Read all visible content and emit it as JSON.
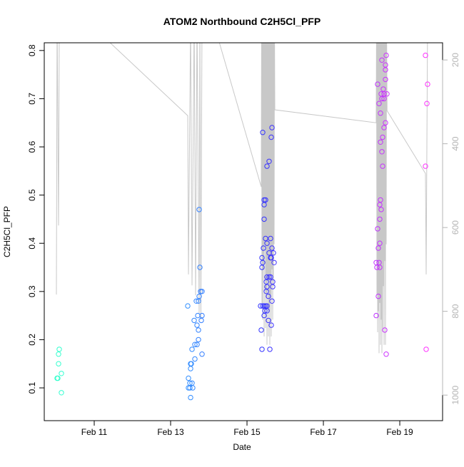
{
  "chart_data": {
    "type": "scatter",
    "title": "ATOM2 Northbound C2H5Cl_PFP",
    "xlabel": "Date",
    "ylabel": "C2H5Cl_PFP",
    "xlim": [
      "Feb 9 16:36",
      "Feb 20 02:54"
    ],
    "ylim": [
      0.032,
      0.816
    ],
    "y2lim": [
      1061,
      159
    ],
    "y2_reversed": true,
    "grid": false,
    "x_ticks": [
      {
        "label": "Feb 11",
        "date": "Feb 11 00:00"
      },
      {
        "label": "Feb 13",
        "date": "Feb 13 00:00"
      },
      {
        "label": "Feb 15",
        "date": "Feb 15 00:00"
      },
      {
        "label": "Feb 17",
        "date": "Feb 17 00:00"
      },
      {
        "label": "Feb 19",
        "date": "Feb 19 00:00"
      }
    ],
    "y_ticks": [
      "0.1",
      "0.2",
      "0.3",
      "0.4",
      "0.5",
      "0.6",
      "0.7",
      "0.8"
    ],
    "y2_ticks": [
      "200",
      "400",
      "600",
      "800",
      "1000"
    ],
    "colors": {
      "points_start": "#33ffcc",
      "points_end": "#ff33ff",
      "line": "#c8c8c8",
      "y2_axis": "#b4b4b4"
    },
    "point_color_scale": "time, cyan to magenta",
    "points": [
      [
        "Feb 10 02:01",
        0.18
      ],
      [
        "Feb 10 01:34",
        0.17
      ],
      [
        "Feb 10 01:34",
        0.15
      ],
      [
        "Feb 10 03:22",
        0.13
      ],
      [
        "Feb 10 00:40",
        0.12
      ],
      [
        "Feb 10 01:07",
        0.12
      ],
      [
        "Feb 10 03:22",
        0.09
      ],
      [
        "Feb 13 10:46",
        0.27
      ],
      [
        "Feb 13 17:57",
        0.47
      ],
      [
        "Feb 13 18:24",
        0.35
      ],
      [
        "Feb 13 18:51",
        0.3
      ],
      [
        "Feb 13 19:45",
        0.3
      ],
      [
        "Feb 13 17:57",
        0.29
      ],
      [
        "Feb 13 16:09",
        0.28
      ],
      [
        "Feb 13 17:30",
        0.28
      ],
      [
        "Feb 13 17:03",
        0.25
      ],
      [
        "Feb 13 19:45",
        0.25
      ],
      [
        "Feb 13 14:48",
        0.24
      ],
      [
        "Feb 13 19:18",
        0.24
      ],
      [
        "Feb 13 16:36",
        0.23
      ],
      [
        "Feb 13 17:30",
        0.22
      ],
      [
        "Feb 13 17:30",
        0.2
      ],
      [
        "Feb 13 15:15",
        0.19
      ],
      [
        "Feb 13 16:36",
        0.19
      ],
      [
        "Feb 13 13:28",
        0.18
      ],
      [
        "Feb 13 19:45",
        0.17
      ],
      [
        "Feb 13 15:15",
        0.16
      ],
      [
        "Feb 13 12:34",
        0.15
      ],
      [
        "Feb 13 13:01",
        0.15
      ],
      [
        "Feb 13 12:34",
        0.14
      ],
      [
        "Feb 13 11:13",
        0.12
      ],
      [
        "Feb 13 12:07",
        0.11
      ],
      [
        "Feb 13 13:28",
        0.11
      ],
      [
        "Feb 13 11:13",
        0.1
      ],
      [
        "Feb 13 12:07",
        0.1
      ],
      [
        "Feb 13 13:55",
        0.1
      ],
      [
        "Feb 13 12:34",
        0.08
      ],
      [
        "Feb 15 09:52",
        0.63
      ],
      [
        "Feb 15 15:42",
        0.64
      ],
      [
        "Feb 15 15:15",
        0.62
      ],
      [
        "Feb 15 13:55",
        0.57
      ],
      [
        "Feb 15 12:34",
        0.56
      ],
      [
        "Feb 15 10:46",
        0.49
      ],
      [
        "Feb 15 11:40",
        0.49
      ],
      [
        "Feb 15 10:46",
        0.48
      ],
      [
        "Feb 15 10:46",
        0.45
      ],
      [
        "Feb 15 11:40",
        0.41
      ],
      [
        "Feb 15 14:48",
        0.41
      ],
      [
        "Feb 15 12:34",
        0.4
      ],
      [
        "Feb 15 10:19",
        0.39
      ],
      [
        "Feb 15 15:42",
        0.39
      ],
      [
        "Feb 15 13:55",
        0.38
      ],
      [
        "Feb 15 16:36",
        0.38
      ],
      [
        "Feb 15 09:25",
        0.37
      ],
      [
        "Feb 15 14:48",
        0.37
      ],
      [
        "Feb 15 15:15",
        0.37
      ],
      [
        "Feb 15 09:52",
        0.36
      ],
      [
        "Feb 15 17:03",
        0.36
      ],
      [
        "Feb 15 09:25",
        0.35
      ],
      [
        "Feb 15 12:34",
        0.33
      ],
      [
        "Feb 15 13:55",
        0.33
      ],
      [
        "Feb 15 14:48",
        0.33
      ],
      [
        "Feb 15 12:07",
        0.32
      ],
      [
        "Feb 15 16:09",
        0.32
      ],
      [
        "Feb 15 12:34",
        0.31
      ],
      [
        "Feb 15 16:09",
        0.31
      ],
      [
        "Feb 15 12:07",
        0.3
      ],
      [
        "Feb 15 13:28",
        0.29
      ],
      [
        "Feb 15 15:42",
        0.28
      ],
      [
        "Feb 15 08:31",
        0.27
      ],
      [
        "Feb 15 09:52",
        0.27
      ],
      [
        "Feb 15 10:46",
        0.27
      ],
      [
        "Feb 15 11:40",
        0.27
      ],
      [
        "Feb 15 12:34",
        0.27
      ],
      [
        "Feb 15 11:13",
        0.26
      ],
      [
        "Feb 15 12:34",
        0.26
      ],
      [
        "Feb 15 10:46",
        0.25
      ],
      [
        "Feb 15 13:28",
        0.24
      ],
      [
        "Feb 15 15:15",
        0.23
      ],
      [
        "Feb 15 08:58",
        0.22
      ],
      [
        "Feb 15 09:25",
        0.18
      ],
      [
        "Feb 15 14:21",
        0.18
      ],
      [
        "Feb 18 15:29",
        0.79
      ],
      [
        "Feb 18 12:47",
        0.78
      ],
      [
        "Feb 18 15:02",
        0.77
      ],
      [
        "Feb 18 15:02",
        0.76
      ],
      [
        "Feb 18 15:02",
        0.74
      ],
      [
        "Feb 18 10:06",
        0.73
      ],
      [
        "Feb 18 13:41",
        0.72
      ],
      [
        "Feb 18 12:20",
        0.71
      ],
      [
        "Feb 18 14:08",
        0.71
      ],
      [
        "Feb 18 15:56",
        0.71
      ],
      [
        "Feb 18 12:47",
        0.7
      ],
      [
        "Feb 18 14:08",
        0.7
      ],
      [
        "Feb 18 11:00",
        0.69
      ],
      [
        "Feb 18 11:53",
        0.67
      ],
      [
        "Feb 18 15:02",
        0.65
      ],
      [
        "Feb 18 14:08",
        0.64
      ],
      [
        "Feb 18 13:14",
        0.62
      ],
      [
        "Feb 18 11:53",
        0.61
      ],
      [
        "Feb 18 12:47",
        0.59
      ],
      [
        "Feb 18 13:14",
        0.56
      ],
      [
        "Feb 18 11:53",
        0.49
      ],
      [
        "Feb 18 11:26",
        0.48
      ],
      [
        "Feb 18 12:20",
        0.47
      ],
      [
        "Feb 18 11:26",
        0.45
      ],
      [
        "Feb 18 10:06",
        0.43
      ],
      [
        "Feb 18 11:26",
        0.4
      ],
      [
        "Feb 18 10:33",
        0.39
      ],
      [
        "Feb 18 09:12",
        0.36
      ],
      [
        "Feb 18 11:00",
        0.36
      ],
      [
        "Feb 18 09:39",
        0.35
      ],
      [
        "Feb 18 11:26",
        0.35
      ],
      [
        "Feb 18 10:33",
        0.29
      ],
      [
        "Feb 18 09:12",
        0.25
      ],
      [
        "Feb 18 14:35",
        0.22
      ],
      [
        "Feb 18 15:29",
        0.17
      ],
      [
        "Feb 19 16:09",
        0.79
      ],
      [
        "Feb 19 17:30",
        0.73
      ],
      [
        "Feb 19 17:03",
        0.69
      ],
      [
        "Feb 19 16:09",
        0.56
      ],
      [
        "Feb 19 16:36",
        0.18
      ]
    ],
    "pressure_line": [
      [
        "Feb 10 00:13",
        760
      ],
      [
        "Feb 10 00:40",
        100
      ],
      [
        "Feb 10 01:34",
        595
      ],
      [
        "Feb 10 02:01",
        150
      ],
      [
        "Feb 10 03:22",
        100
      ],
      [
        "Feb 11 09:25",
        157
      ],
      [
        "Feb 13 10:46",
        333
      ],
      [
        "Feb 13 11:13",
        712
      ],
      [
        "Feb 13 12:34",
        100
      ],
      [
        "Feb 13 13:28",
        738
      ],
      [
        "Feb 13 14:48",
        100
      ],
      [
        "Feb 13 15:42",
        762
      ],
      [
        "Feb 13 16:36",
        100
      ],
      [
        "Feb 13 17:57",
        806
      ],
      [
        "Feb 13 18:24",
        100
      ],
      [
        "Feb 13 19:00",
        820
      ],
      [
        "Feb 13 19:45",
        100
      ],
      [
        "Feb 14 06:30",
        157
      ],
      [
        "Feb 15 08:58",
        503
      ],
      [
        "Feb 15 09:10",
        100
      ],
      [
        "Feb 15 09:25",
        780
      ],
      [
        "Feb 15 09:40",
        100
      ],
      [
        "Feb 15 09:52",
        820
      ],
      [
        "Feb 15 10:05",
        100
      ],
      [
        "Feb 15 10:19",
        700
      ],
      [
        "Feb 15 10:30",
        100
      ],
      [
        "Feb 15 10:46",
        860
      ],
      [
        "Feb 15 11:00",
        100
      ],
      [
        "Feb 15 11:13",
        640
      ],
      [
        "Feb 15 11:26",
        100
      ],
      [
        "Feb 15 11:40",
        840
      ],
      [
        "Feb 15 11:53",
        100
      ],
      [
        "Feb 15 12:07",
        760
      ],
      [
        "Feb 15 12:20",
        100
      ],
      [
        "Feb 15 12:34",
        880
      ],
      [
        "Feb 15 12:47",
        100
      ],
      [
        "Feb 15 13:01",
        720
      ],
      [
        "Feb 15 13:14",
        100
      ],
      [
        "Feb 15 13:28",
        860
      ],
      [
        "Feb 15 13:41",
        100
      ],
      [
        "Feb 15 13:55",
        800
      ],
      [
        "Feb 15 14:08",
        100
      ],
      [
        "Feb 15 14:21",
        880
      ],
      [
        "Feb 15 14:35",
        100
      ],
      [
        "Feb 15 14:48",
        760
      ],
      [
        "Feb 15 15:02",
        100
      ],
      [
        "Feb 15 15:15",
        860
      ],
      [
        "Feb 15 15:29",
        100
      ],
      [
        "Feb 15 15:42",
        700
      ],
      [
        "Feb 15 15:56",
        100
      ],
      [
        "Feb 15 16:09",
        820
      ],
      [
        "Feb 15 16:22",
        100
      ],
      [
        "Feb 15 16:36",
        740
      ],
      [
        "Feb 15 16:50",
        100
      ],
      [
        "Feb 15 17:03",
        640
      ],
      [
        "Feb 15 17:16",
        100
      ],
      [
        "Feb 15 17:30",
        319
      ],
      [
        "Feb 18 09:12",
        350
      ],
      [
        "Feb 18 09:25",
        100
      ],
      [
        "Feb 18 09:39",
        760
      ],
      [
        "Feb 18 09:52",
        100
      ],
      [
        "Feb 18 10:06",
        850
      ],
      [
        "Feb 18 10:19",
        100
      ],
      [
        "Feb 18 10:33",
        800
      ],
      [
        "Feb 18 10:46",
        100
      ],
      [
        "Feb 18 11:00",
        900
      ],
      [
        "Feb 18 11:13",
        100
      ],
      [
        "Feb 18 11:26",
        780
      ],
      [
        "Feb 18 11:40",
        100
      ],
      [
        "Feb 18 11:53",
        880
      ],
      [
        "Feb 18 12:06",
        100
      ],
      [
        "Feb 18 12:20",
        820
      ],
      [
        "Feb 18 12:33",
        100
      ],
      [
        "Feb 18 12:47",
        900
      ],
      [
        "Feb 18 13:00",
        100
      ],
      [
        "Feb 18 13:14",
        840
      ],
      [
        "Feb 18 13:27",
        100
      ],
      [
        "Feb 18 13:41",
        740
      ],
      [
        "Feb 18 13:54",
        100
      ],
      [
        "Feb 18 14:08",
        880
      ],
      [
        "Feb 18 14:21",
        100
      ],
      [
        "Feb 18 14:35",
        680
      ],
      [
        "Feb 18 14:48",
        100
      ],
      [
        "Feb 18 15:02",
        880
      ],
      [
        "Feb 18 15:15",
        100
      ],
      [
        "Feb 18 15:29",
        640
      ],
      [
        "Feb 18 15:42",
        100
      ],
      [
        "Feb 18 16:00",
        321
      ],
      [
        "Feb 19 16:09",
        471
      ],
      [
        "Feb 19 16:36",
        712
      ],
      [
        "Feb 19 17:30",
        100
      ]
    ]
  }
}
